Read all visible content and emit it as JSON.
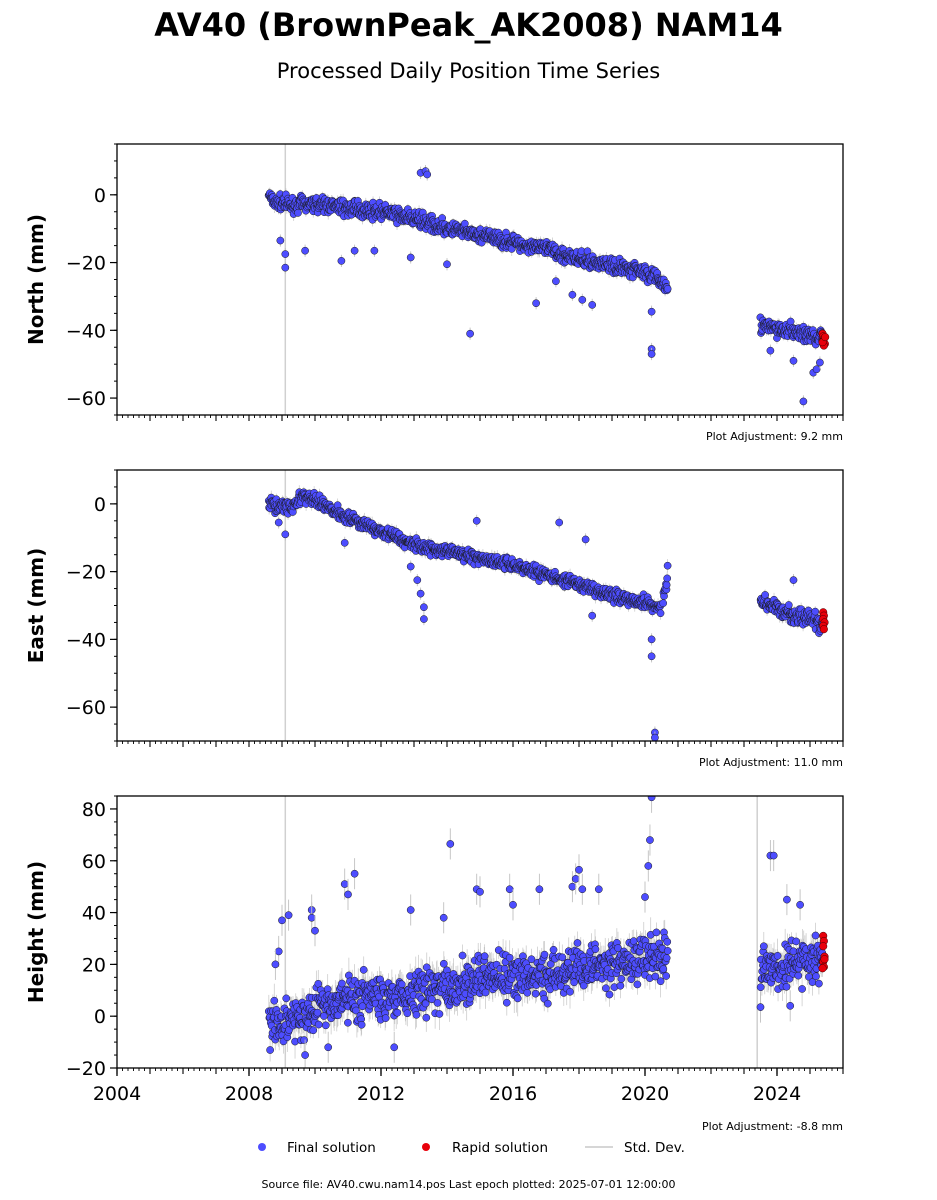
{
  "title": "AV40 (BrownPeak_AK2008) NAM14",
  "subtitle": "Processed Daily Position Time Series",
  "footer": "Source file: AV40.cwu.nam14.pos  Last epoch plotted: 2025-07-01 12:00:00",
  "legend": {
    "final": "Final solution",
    "rapid": "Rapid solution",
    "std": "Std. Dev.",
    "placement": "bottom-center"
  },
  "colors": {
    "final": "#4d4dff",
    "rapid": "#e8000b",
    "std": "#c8c8c8",
    "edge": "#1a1a1a"
  },
  "chart_data": [
    {
      "type": "scatter",
      "ylabel": "North (mm)",
      "adjustment": "Plot Adjustment: 9.2 mm",
      "xlim": [
        2004,
        2026
      ],
      "ylim": [
        -65,
        15
      ],
      "yticks": [
        0,
        -20,
        -40,
        -60
      ],
      "yticks_labels": [
        "0",
        "−20",
        "−40",
        "−60"
      ],
      "vline_x": 2009.1,
      "series": [
        {
          "kind": "final",
          "segments": [
            {
              "x": [
                2008.6,
                2008.8,
                2009.3,
                2010.0,
                2011.0,
                2012.0,
                2013.0,
                2014.0,
                2015.0,
                2016.0,
                2017.0,
                2018.0,
                2019.0,
                2019.8,
                2020.3,
                2020.7
              ],
              "y": [
                0,
                -2,
                -3,
                -2.5,
                -4,
                -5,
                -7,
                -10,
                -12,
                -14,
                -16,
                -19,
                -21,
                -22,
                -24,
                -28
              ],
              "spread": 1.5
            },
            {
              "x": [
                2023.5,
                2024.0,
                2024.5,
                2025.0,
                2025.4
              ],
              "y": [
                -38.5,
                -39.5,
                -40.5,
                -41.5,
                -42
              ],
              "spread": 1.6
            }
          ],
          "outliers": [
            {
              "x": 2008.95,
              "y": -13.5
            },
            {
              "x": 2009.1,
              "y": -17.5
            },
            {
              "x": 2009.1,
              "y": -21.5
            },
            {
              "x": 2009.7,
              "y": -16.5
            },
            {
              "x": 2010.8,
              "y": -19.5
            },
            {
              "x": 2011.2,
              "y": -16.5
            },
            {
              "x": 2011.8,
              "y": -16.5
            },
            {
              "x": 2012.9,
              "y": -18.5
            },
            {
              "x": 2013.2,
              "y": 6.5
            },
            {
              "x": 2013.35,
              "y": 7
            },
            {
              "x": 2013.4,
              "y": 6
            },
            {
              "x": 2014.0,
              "y": -20.5
            },
            {
              "x": 2014.7,
              "y": -41
            },
            {
              "x": 2016.7,
              "y": -32
            },
            {
              "x": 2017.3,
              "y": -25.5
            },
            {
              "x": 2017.8,
              "y": -29.5
            },
            {
              "x": 2018.1,
              "y": -31
            },
            {
              "x": 2018.4,
              "y": -32.5
            },
            {
              "x": 2020.2,
              "y": -34.5
            },
            {
              "x": 2020.2,
              "y": -45.5
            },
            {
              "x": 2020.2,
              "y": -47
            },
            {
              "x": 2023.8,
              "y": -46
            },
            {
              "x": 2024.5,
              "y": -49
            },
            {
              "x": 2024.8,
              "y": -61
            },
            {
              "x": 2025.1,
              "y": -52.5
            },
            {
              "x": 2025.2,
              "y": -51.5
            },
            {
              "x": 2025.3,
              "y": -49.5
            }
          ]
        },
        {
          "kind": "rapid",
          "points": [
            {
              "x": 2025.38,
              "y": -41
            },
            {
              "x": 2025.4,
              "y": -41.8
            },
            {
              "x": 2025.42,
              "y": -42.5
            },
            {
              "x": 2025.4,
              "y": -43.2
            },
            {
              "x": 2025.45,
              "y": -44
            },
            {
              "x": 2025.42,
              "y": -44.5
            },
            {
              "x": 2025.38,
              "y": -43.5
            },
            {
              "x": 2025.46,
              "y": -42
            }
          ]
        }
      ]
    },
    {
      "type": "scatter",
      "ylabel": "East (mm)",
      "adjustment": "Plot Adjustment: 11.0 mm",
      "xlim": [
        2004,
        2026
      ],
      "ylim": [
        -70,
        10
      ],
      "yticks": [
        0,
        -20,
        -40,
        -60
      ],
      "yticks_labels": [
        "0",
        "−20",
        "−40",
        "−60"
      ],
      "vline_x": 2009.1,
      "series": [
        {
          "kind": "final",
          "segments": [
            {
              "x": [
                2008.6,
                2009.3,
                2009.6,
                2010.0,
                2011.0,
                2012.0,
                2013.0,
                2014.0,
                2015.0,
                2016.0,
                2017.0,
                2018.0,
                2019.0,
                2020.0,
                2020.5
              ],
              "y": [
                0,
                -1,
                2,
                1,
                -4,
                -8,
                -12,
                -14,
                -16,
                -18,
                -21,
                -24,
                -27,
                -29,
                -31
              ],
              "spread": 1.3
            },
            {
              "x": [
                2020.55,
                2020.7
              ],
              "y": [
                -28,
                -20
              ],
              "spread": 1.5
            },
            {
              "x": [
                2023.5,
                2024.0,
                2024.5,
                2025.0,
                2025.4
              ],
              "y": [
                -28,
                -31,
                -33,
                -34,
                -36
              ],
              "spread": 1.6
            }
          ],
          "outliers": [
            {
              "x": 2008.9,
              "y": -5.5
            },
            {
              "x": 2009.1,
              "y": -9
            },
            {
              "x": 2010.9,
              "y": -11.5
            },
            {
              "x": 2012.9,
              "y": -18.5
            },
            {
              "x": 2013.1,
              "y": -22.5
            },
            {
              "x": 2013.2,
              "y": -26.5
            },
            {
              "x": 2013.3,
              "y": -30.5
            },
            {
              "x": 2013.3,
              "y": -34
            },
            {
              "x": 2014.9,
              "y": -5
            },
            {
              "x": 2017.4,
              "y": -5.5
            },
            {
              "x": 2018.2,
              "y": -10.5
            },
            {
              "x": 2018.4,
              "y": -33
            },
            {
              "x": 2020.2,
              "y": -40
            },
            {
              "x": 2020.2,
              "y": -45
            },
            {
              "x": 2020.3,
              "y": -67.5
            },
            {
              "x": 2020.3,
              "y": -69
            },
            {
              "x": 2024.5,
              "y": -22.5
            }
          ]
        },
        {
          "kind": "rapid",
          "points": [
            {
              "x": 2025.4,
              "y": -32
            },
            {
              "x": 2025.42,
              "y": -33
            },
            {
              "x": 2025.4,
              "y": -34
            },
            {
              "x": 2025.44,
              "y": -35
            },
            {
              "x": 2025.4,
              "y": -36
            },
            {
              "x": 2025.42,
              "y": -37
            }
          ]
        }
      ]
    },
    {
      "type": "scatter",
      "ylabel": "Height (mm)",
      "adjustment": "Plot Adjustment: -8.8 mm",
      "xlim": [
        2004,
        2026
      ],
      "ylim": [
        -20,
        85
      ],
      "yticks": [
        80,
        60,
        40,
        20,
        0,
        -20
      ],
      "yticks_labels": [
        "80",
        "60",
        "40",
        "20",
        "0",
        "−20"
      ],
      "xticks": [
        2004,
        2008,
        2012,
        2016,
        2020,
        2024
      ],
      "vline_x": 2009.1,
      "vline_x2": 2023.4,
      "series": [
        {
          "kind": "final",
          "segments": [
            {
              "x": [
                2008.6,
                2009.0,
                2010.0,
                2011.0,
                2012.0,
                2013.0,
                2014.0,
                2015.0,
                2016.0,
                2017.0,
                2018.0,
                2019.0,
                2020.0,
                2020.7
              ],
              "y": [
                -2,
                -3,
                3,
                7,
                8,
                9,
                12,
                14,
                15,
                16,
                19,
                20,
                22,
                24
              ],
              "spread": 6
            },
            {
              "x": [
                2023.5,
                2024.0,
                2024.5,
                2025.0,
                2025.4
              ],
              "y": [
                18,
                18,
                20,
                22,
                22
              ],
              "spread": 6
            }
          ],
          "outliers": [
            {
              "x": 2009.0,
              "y": 37
            },
            {
              "x": 2009.2,
              "y": 39
            },
            {
              "x": 2008.9,
              "y": 25
            },
            {
              "x": 2008.8,
              "y": 20
            },
            {
              "x": 2009.9,
              "y": 41
            },
            {
              "x": 2009.9,
              "y": 38
            },
            {
              "x": 2010.0,
              "y": 33
            },
            {
              "x": 2010.9,
              "y": 51
            },
            {
              "x": 2011.0,
              "y": 47
            },
            {
              "x": 2011.2,
              "y": 55
            },
            {
              "x": 2012.9,
              "y": 41
            },
            {
              "x": 2014.1,
              "y": 66.5
            },
            {
              "x": 2013.9,
              "y": 38
            },
            {
              "x": 2014.9,
              "y": 49
            },
            {
              "x": 2015.0,
              "y": 48
            },
            {
              "x": 2015.9,
              "y": 49
            },
            {
              "x": 2016.0,
              "y": 43
            },
            {
              "x": 2016.8,
              "y": 49
            },
            {
              "x": 2017.8,
              "y": 50
            },
            {
              "x": 2017.9,
              "y": 53
            },
            {
              "x": 2018.0,
              "y": 56.5
            },
            {
              "x": 2018.1,
              "y": 49
            },
            {
              "x": 2018.6,
              "y": 49
            },
            {
              "x": 2020.1,
              "y": 58
            },
            {
              "x": 2020.15,
              "y": 68
            },
            {
              "x": 2020.2,
              "y": 84.5
            },
            {
              "x": 2020.0,
              "y": 46
            },
            {
              "x": 2009.7,
              "y": -15
            },
            {
              "x": 2010.4,
              "y": -12
            },
            {
              "x": 2012.4,
              "y": -12
            },
            {
              "x": 2023.5,
              "y": 3.5
            },
            {
              "x": 2023.8,
              "y": 62
            },
            {
              "x": 2023.9,
              "y": 62
            },
            {
              "x": 2024.3,
              "y": 45
            },
            {
              "x": 2024.7,
              "y": 43
            },
            {
              "x": 2024.4,
              "y": 4
            }
          ]
        },
        {
          "kind": "rapid",
          "points": [
            {
              "x": 2025.4,
              "y": 31
            },
            {
              "x": 2025.42,
              "y": 29
            },
            {
              "x": 2025.4,
              "y": 27
            },
            {
              "x": 2025.44,
              "y": 23
            },
            {
              "x": 2025.4,
              "y": 21
            },
            {
              "x": 2025.42,
              "y": 19
            },
            {
              "x": 2025.38,
              "y": 18.5
            },
            {
              "x": 2025.44,
              "y": 22
            }
          ]
        }
      ]
    }
  ]
}
